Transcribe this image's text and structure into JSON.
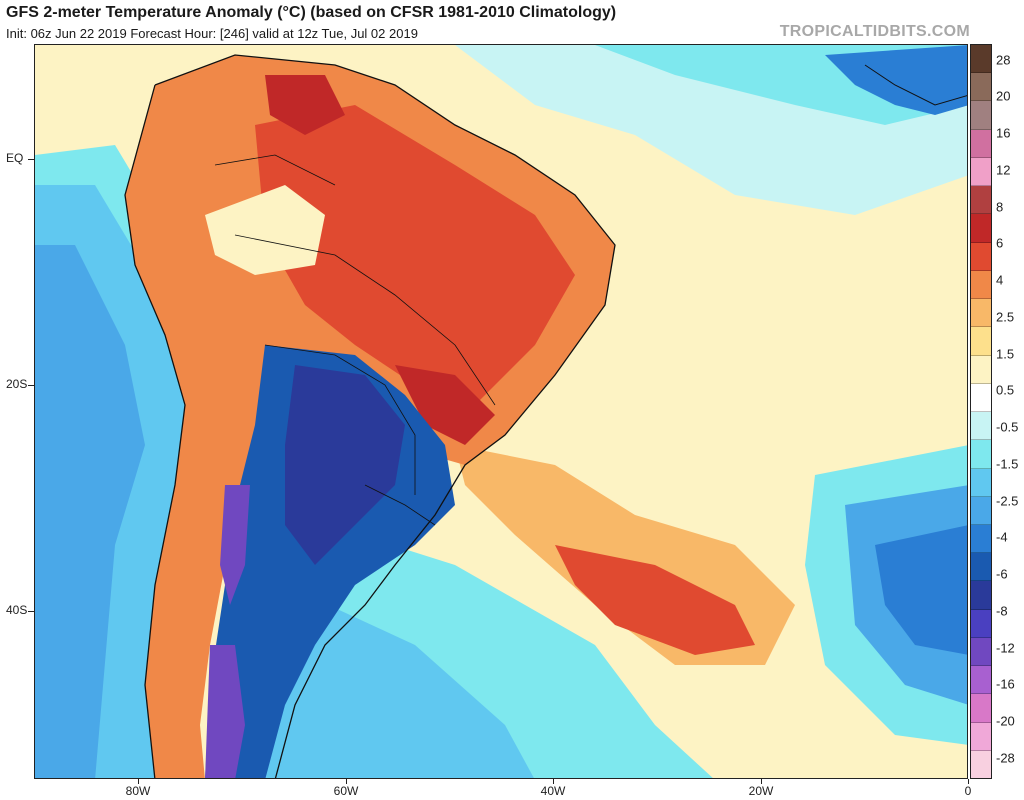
{
  "header": {
    "title": "GFS 2-meter Temperature Anomaly (°C) (based on CFSR 1981-2010 Climatology)",
    "subtitle": "Init: 06z Jun 22 2019   Forecast Hour: [246]   valid at 12z Tue, Jul 02 2019",
    "watermark": "TROPICALTIDBITS.COM"
  },
  "axes": {
    "latitude_labels": [
      "EQ",
      "20S",
      "40S"
    ],
    "longitude_labels": [
      "80W",
      "60W",
      "40W",
      "20W",
      "0"
    ]
  },
  "colorbar": {
    "labels": [
      "28",
      "20",
      "16",
      "12",
      "8",
      "6",
      "4",
      "2.5",
      "1.5",
      "0.5",
      "-0.5",
      "-1.5",
      "-2.5",
      "-4",
      "-6",
      "-8",
      "-12",
      "-16",
      "-20",
      "-28"
    ],
    "colors": [
      "#5a3a2a",
      "#8a6a5a",
      "#a08080",
      "#d070a0",
      "#f0a0c8",
      "#b04040",
      "#c02828",
      "#e04a30",
      "#f08848",
      "#f8b868",
      "#fde08c",
      "#fdf3c4",
      "#ffffff",
      "#c8f4f4",
      "#7ee8ee",
      "#60c8f0",
      "#4aa8e8",
      "#2a7ed4",
      "#1a5ab0",
      "#2a3a9a",
      "#4a40c0",
      "#7048c0",
      "#a860d0",
      "#d878c8",
      "#f0a8d8",
      "#f8d0e0"
    ]
  },
  "map": {
    "colors": {
      "ocean_neutral": "#fdf3c4",
      "ocean_cool": "#7ee8ee",
      "ocean_cold": "#60c8f0",
      "ocean_deep_cold": "#2a7ed4",
      "land_warm": "#f08848",
      "land_hot": "#e04a30",
      "land_very_hot": "#c02828",
      "land_cold": "#1a5ab0",
      "land_very_cold": "#2a3a9a",
      "andes_cold": "#7048c0",
      "border": "#111111"
    }
  }
}
